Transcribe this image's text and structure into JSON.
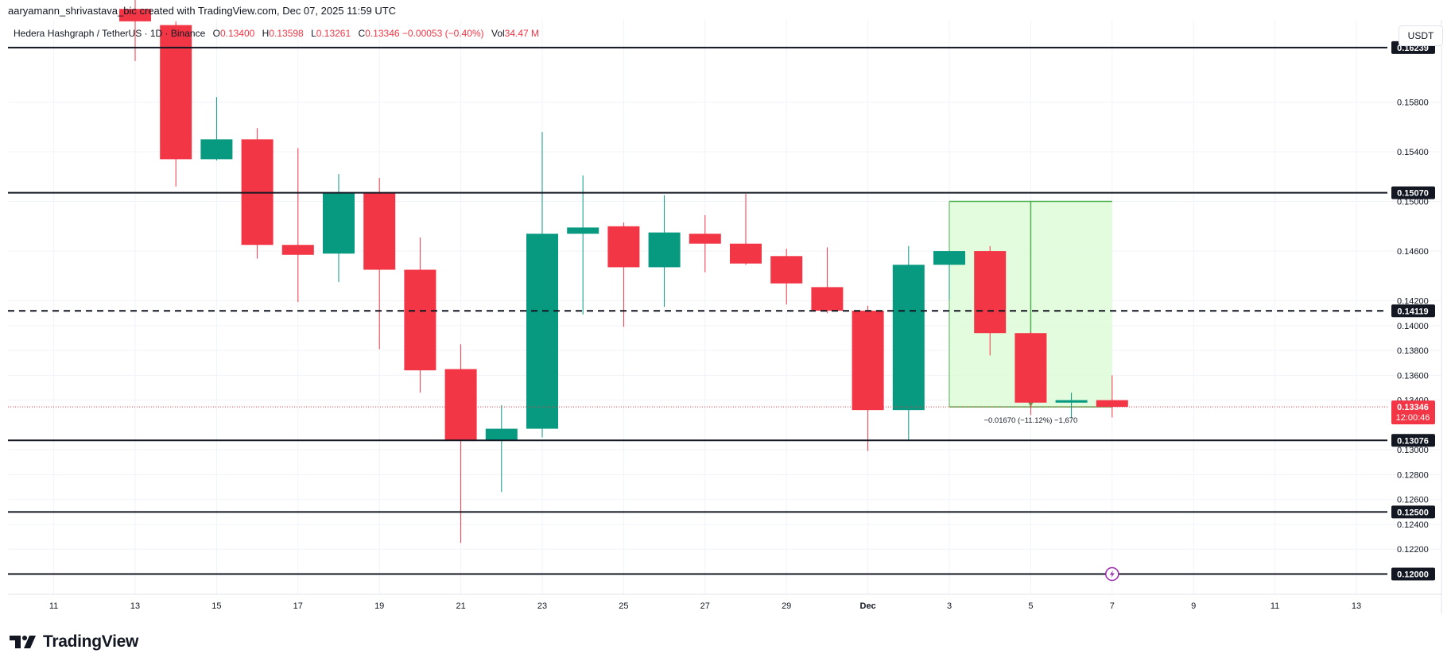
{
  "header": {
    "author": "aaryamann_shrivastava_bic",
    "created_with": "created with TradingView.com,",
    "date": "Dec 07, 2025 11:59 UTC"
  },
  "legend": {
    "symbol": "Hedera Hashgraph / TetherUS · 1D · Binance",
    "o_label": "O",
    "o_value": "0.13400",
    "h_label": "H",
    "h_value": "0.13598",
    "l_label": "L",
    "l_value": "0.13261",
    "c_label": "C",
    "c_value": "0.13346 −0.00053 (−0.40%)",
    "vol_label": "Vol",
    "vol_value": "34.47 M"
  },
  "currency_button": "USDT",
  "brand": {
    "name": "TradingView",
    "icon": "tradingview-logo-icon"
  },
  "colors": {
    "up": "#089981",
    "down": "#f23645",
    "measure_fill": "#dbfbd3",
    "measure_line": "#4caf50",
    "last_price_bg": "#f23645"
  },
  "chart_data": {
    "type": "candlestick",
    "symbol": "HBAR/USDT",
    "ylim": [
      0.1192,
      0.1643
    ],
    "x_ticks": [
      "11",
      "13",
      "15",
      "17",
      "19",
      "21",
      "23",
      "25",
      "27",
      "29",
      "Dec",
      "3",
      "5",
      "7",
      "9",
      "11",
      "13"
    ],
    "y_ticks": [
      "0.15800",
      "0.15400",
      "0.15000",
      "0.14600",
      "0.14200",
      "0.14000",
      "0.13800",
      "0.13600",
      "0.13400",
      "0.13000",
      "0.12800",
      "0.12600",
      "0.12400",
      "0.12200"
    ],
    "candles": [
      {
        "date": "Nov 13",
        "open": 0.1655,
        "high": 0.168,
        "low": 0.1613,
        "close": 0.1645
      },
      {
        "date": "Nov 14",
        "open": 0.1642,
        "high": 0.1645,
        "low": 0.1512,
        "close": 0.1534
      },
      {
        "date": "Nov 15",
        "open": 0.1534,
        "high": 0.1584,
        "low": 0.1533,
        "close": 0.155
      },
      {
        "date": "Nov 16",
        "open": 0.155,
        "high": 0.1559,
        "low": 0.1454,
        "close": 0.1465
      },
      {
        "date": "Nov 17",
        "open": 0.1465,
        "high": 0.1543,
        "low": 0.1419,
        "close": 0.1457
      },
      {
        "date": "Nov 18",
        "open": 0.1458,
        "high": 0.1522,
        "low": 0.1435,
        "close": 0.1507
      },
      {
        "date": "Nov 19",
        "open": 0.1507,
        "high": 0.1519,
        "low": 0.1381,
        "close": 0.1445
      },
      {
        "date": "Nov 20",
        "open": 0.1445,
        "high": 0.1471,
        "low": 0.1346,
        "close": 0.1364
      },
      {
        "date": "Nov 21",
        "open": 0.1365,
        "high": 0.1385,
        "low": 0.1225,
        "close": 0.1308
      },
      {
        "date": "Nov 22",
        "open": 0.1308,
        "high": 0.1336,
        "low": 0.1266,
        "close": 0.1317
      },
      {
        "date": "Nov 23",
        "open": 0.1317,
        "high": 0.1556,
        "low": 0.131,
        "close": 0.1474
      },
      {
        "date": "Nov 24",
        "open": 0.1474,
        "high": 0.1521,
        "low": 0.1409,
        "close": 0.1479
      },
      {
        "date": "Nov 25",
        "open": 0.148,
        "high": 0.1483,
        "low": 0.1399,
        "close": 0.1447
      },
      {
        "date": "Nov 26",
        "open": 0.1447,
        "high": 0.1505,
        "low": 0.1415,
        "close": 0.1475
      },
      {
        "date": "Nov 27",
        "open": 0.1474,
        "high": 0.1489,
        "low": 0.1443,
        "close": 0.1466
      },
      {
        "date": "Nov 28",
        "open": 0.1466,
        "high": 0.1506,
        "low": 0.1449,
        "close": 0.145
      },
      {
        "date": "Nov 29",
        "open": 0.1456,
        "high": 0.1462,
        "low": 0.1417,
        "close": 0.1434
      },
      {
        "date": "Nov 30",
        "open": 0.1431,
        "high": 0.1463,
        "low": 0.141,
        "close": 0.1412
      },
      {
        "date": "Dec 1",
        "open": 0.1412,
        "high": 0.1416,
        "low": 0.1299,
        "close": 0.1332
      },
      {
        "date": "Dec 2",
        "open": 0.1332,
        "high": 0.1464,
        "low": 0.1308,
        "close": 0.1449
      },
      {
        "date": "Dec 3",
        "open": 0.1449,
        "high": 0.1459,
        "low": 0.1421,
        "close": 0.146
      },
      {
        "date": "Dec 4",
        "open": 0.146,
        "high": 0.1464,
        "low": 0.1376,
        "close": 0.1394
      },
      {
        "date": "Dec 5",
        "open": 0.1394,
        "high": 0.1395,
        "low": 0.1328,
        "close": 0.1338
      },
      {
        "date": "Dec 6",
        "open": 0.1338,
        "high": 0.1346,
        "low": 0.1326,
        "close": 0.134
      },
      {
        "date": "Dec 7",
        "open": 0.134,
        "high": 0.136,
        "low": 0.1326,
        "close": 0.13346
      }
    ],
    "levels": [
      {
        "value": 0.16239,
        "label": "0.16239",
        "style": "solid"
      },
      {
        "value": 0.1507,
        "label": "0.15070",
        "style": "solid"
      },
      {
        "value": 0.14119,
        "label": "0.14119",
        "style": "dashed"
      },
      {
        "value": 0.13076,
        "label": "0.13076",
        "style": "solid"
      },
      {
        "value": 0.125,
        "label": "0.12500",
        "style": "solid"
      },
      {
        "value": 0.12,
        "label": "0.12000",
        "style": "solid"
      }
    ],
    "last_price": {
      "value": 0.13346,
      "label": "0.13346",
      "countdown": "12:00:46"
    },
    "measure": {
      "from_date": "Dec 3",
      "to_date": "Dec 7",
      "from_price": 0.15,
      "to_price": 0.13346,
      "mid_date": "Dec 5",
      "label": "−0.01670 (−11.12%) −1,670"
    }
  }
}
